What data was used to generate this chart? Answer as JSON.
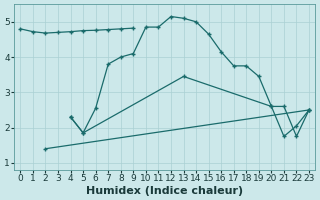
{
  "xlabel": "Humidex (Indice chaleur)",
  "bg_color": "#cce8ea",
  "grid_color": "#aad0d4",
  "line_color": "#1a6b6b",
  "xlim": [
    -0.5,
    23.5
  ],
  "ylim": [
    0.8,
    5.5
  ],
  "xticks": [
    0,
    1,
    2,
    3,
    4,
    5,
    6,
    7,
    8,
    9,
    10,
    11,
    12,
    13,
    14,
    15,
    16,
    17,
    18,
    19,
    20,
    21,
    22,
    23
  ],
  "yticks": [
    1,
    2,
    3,
    4,
    5
  ],
  "line1_x": [
    0,
    1,
    2,
    3,
    4,
    5,
    6,
    7,
    8,
    9
  ],
  "line1_y": [
    4.8,
    4.72,
    4.68,
    4.7,
    4.72,
    4.75,
    4.76,
    4.78,
    4.8,
    4.82
  ],
  "line2_x": [
    4,
    5,
    6,
    7,
    8,
    9,
    10,
    11,
    12,
    13,
    14,
    15,
    16,
    17,
    18,
    19,
    20,
    21,
    22,
    23
  ],
  "line2_y": [
    2.3,
    1.85,
    2.55,
    3.8,
    4.0,
    4.1,
    4.85,
    4.85,
    5.15,
    5.1,
    5.0,
    4.65,
    4.15,
    3.75,
    3.75,
    3.45,
    2.6,
    1.75,
    2.05,
    2.5
  ],
  "line3_x": [
    4,
    5,
    13,
    20,
    21,
    22,
    23
  ],
  "line3_y": [
    2.3,
    1.85,
    3.45,
    2.6,
    2.6,
    1.75,
    2.5
  ],
  "line4_x": [
    2,
    23
  ],
  "line4_y": [
    1.4,
    2.5
  ],
  "fontsize_label": 8,
  "fontsize_tick": 6.5
}
